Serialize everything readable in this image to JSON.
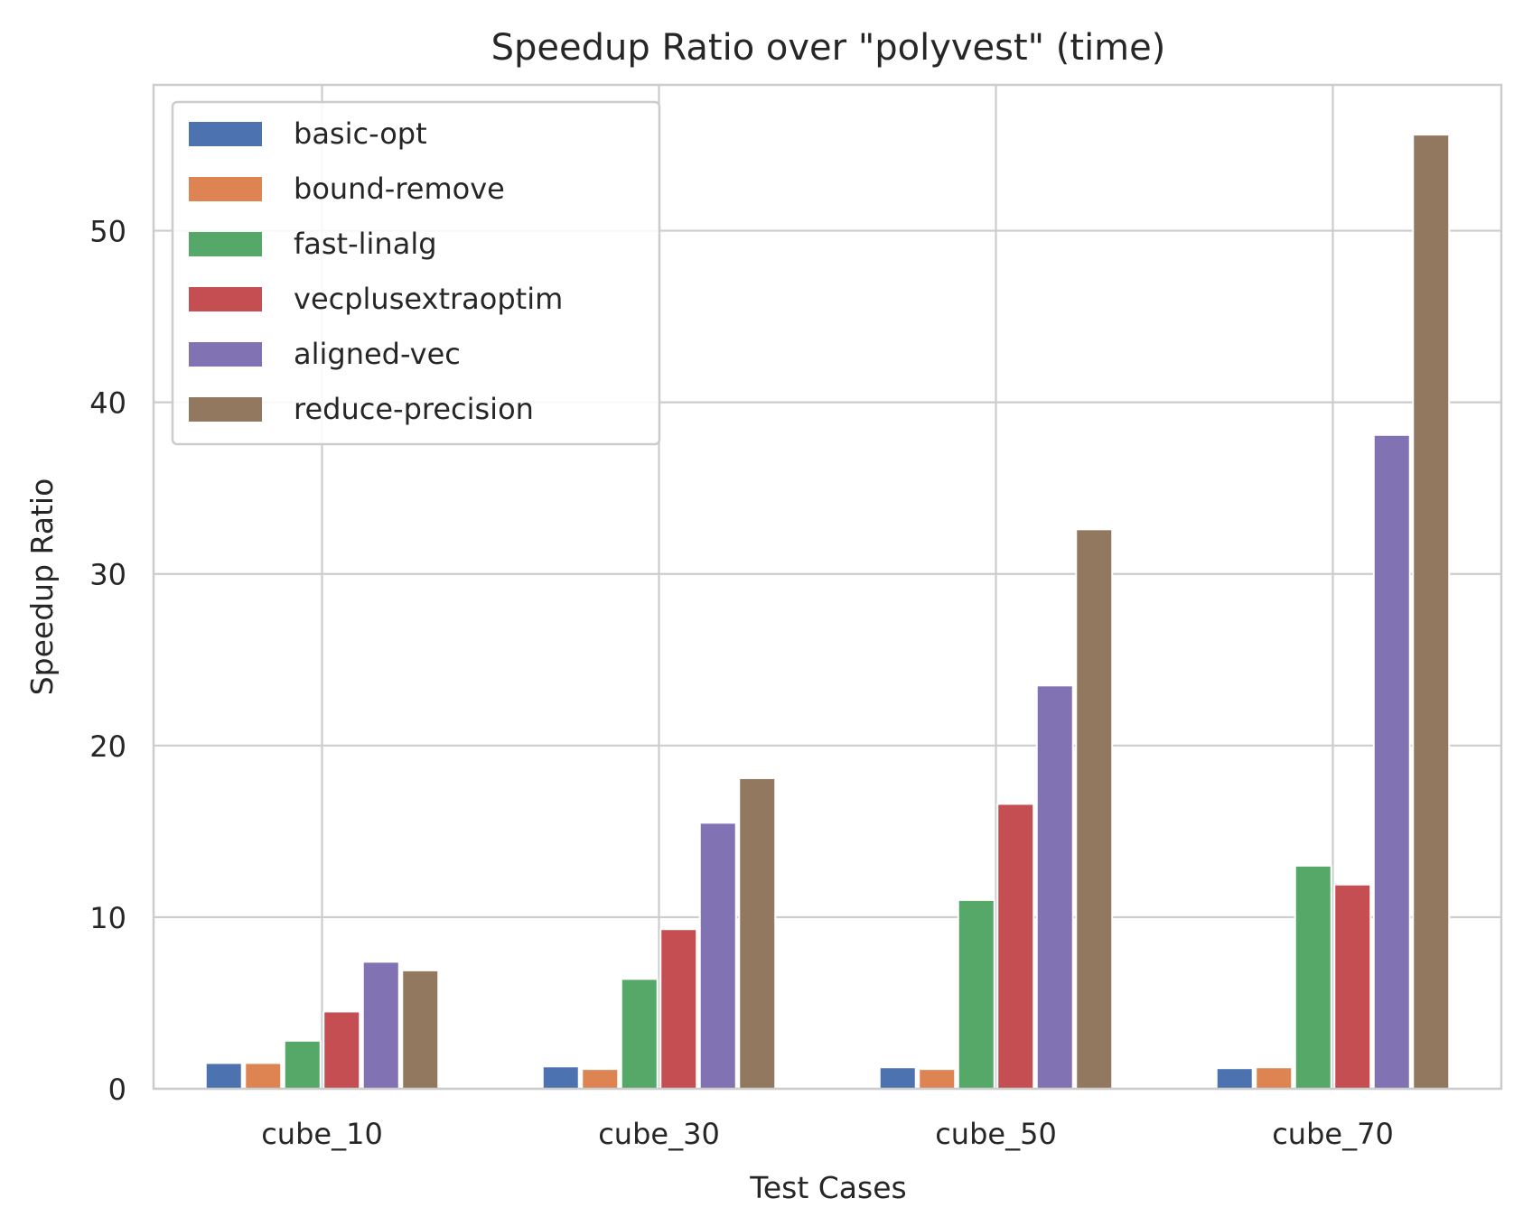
{
  "chart_data": {
    "type": "bar",
    "title": "Speedup Ratio over \"polyvest\" (time)",
    "xlabel": "Test Cases",
    "ylabel": "Speedup Ratio",
    "categories": [
      "cube_10",
      "cube_30",
      "cube_50",
      "cube_70"
    ],
    "ylim": [
      0,
      58.5
    ],
    "yticks": [
      0,
      10,
      20,
      30,
      40,
      50
    ],
    "grid": true,
    "legend_position": "top-left",
    "series": [
      {
        "name": "basic-opt",
        "color": "#4c72b0",
        "values": [
          1.5,
          1.3,
          1.25,
          1.2
        ]
      },
      {
        "name": "bound-remove",
        "color": "#dd8452",
        "values": [
          1.5,
          1.15,
          1.15,
          1.25
        ]
      },
      {
        "name": "fast-linalg",
        "color": "#55a868",
        "values": [
          2.8,
          6.4,
          11.0,
          13.0
        ]
      },
      {
        "name": "vecplusextraoptim",
        "color": "#c44e52",
        "values": [
          4.5,
          9.3,
          16.6,
          11.9
        ]
      },
      {
        "name": "aligned-vec",
        "color": "#8172b3",
        "values": [
          7.4,
          15.5,
          23.5,
          38.1
        ]
      },
      {
        "name": "reduce-precision",
        "color": "#937860",
        "values": [
          6.9,
          18.1,
          32.6,
          55.6
        ]
      }
    ]
  }
}
